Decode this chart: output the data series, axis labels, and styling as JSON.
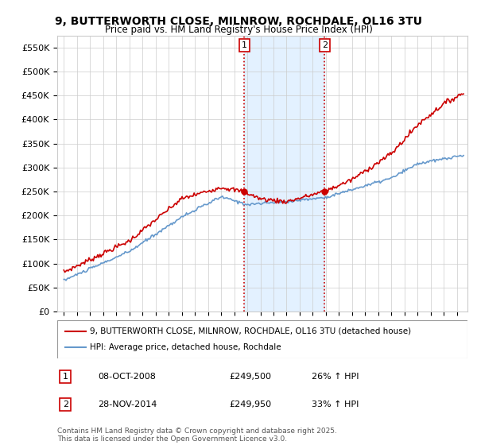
{
  "title": "9, BUTTERWORTH CLOSE, MILNROW, ROCHDALE, OL16 3TU",
  "subtitle": "Price paid vs. HM Land Registry's House Price Index (HPI)",
  "legend_line1": "9, BUTTERWORTH CLOSE, MILNROW, ROCHDALE, OL16 3TU (detached house)",
  "legend_line2": "HPI: Average price, detached house, Rochdale",
  "annotation1_label": "1",
  "annotation1_date": "08-OCT-2008",
  "annotation1_price": "£249,500",
  "annotation1_hpi": "26% ↑ HPI",
  "annotation2_label": "2",
  "annotation2_date": "28-NOV-2014",
  "annotation2_price": "£249,950",
  "annotation2_hpi": "33% ↑ HPI",
  "footnote": "Contains HM Land Registry data © Crown copyright and database right 2025.\nThis data is licensed under the Open Government Licence v3.0.",
  "price_line_color": "#cc0000",
  "hpi_line_color": "#6699cc",
  "annotation_vline_color": "#cc0000",
  "highlight_bg_color": "#ddeeff",
  "ylim": [
    0,
    575000
  ],
  "yticks": [
    0,
    50000,
    100000,
    150000,
    200000,
    250000,
    300000,
    350000,
    400000,
    450000,
    500000,
    550000
  ],
  "ytick_labels": [
    "£0",
    "£50K",
    "£100K",
    "£150K",
    "£200K",
    "£250K",
    "£300K",
    "£350K",
    "£400K",
    "£450K",
    "£500K",
    "£550K"
  ],
  "year_start": 1995,
  "year_end": 2025,
  "sale1_year": 2008.77,
  "sale2_year": 2014.91,
  "sale1_price": 249500,
  "sale2_price": 249950
}
